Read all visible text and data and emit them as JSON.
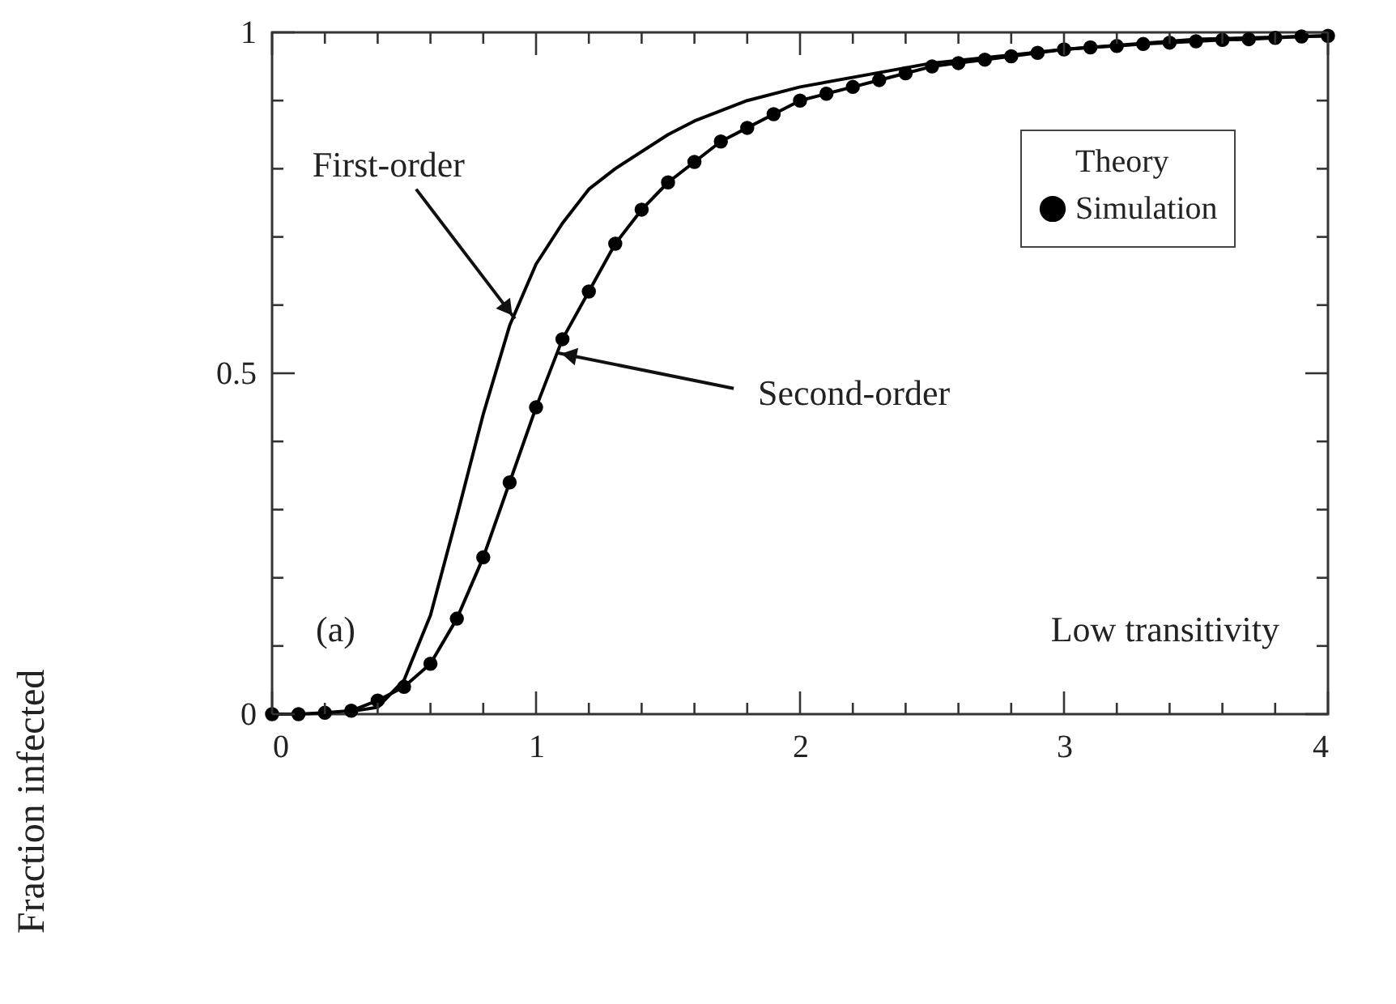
{
  "chart_data": {
    "type": "line",
    "ylabel": "Fraction infected",
    "x": [
      0,
      0.1,
      0.2,
      0.3,
      0.4,
      0.5,
      0.6,
      0.7,
      0.8,
      0.9,
      1.0,
      1.1,
      1.2,
      1.3,
      1.4,
      1.5,
      1.6,
      1.7,
      1.8,
      1.9,
      2.0,
      2.1,
      2.2,
      2.3,
      2.4,
      2.5,
      2.6,
      2.7,
      2.8,
      2.9,
      3.0,
      3.1,
      3.2,
      3.3,
      3.4,
      3.5,
      3.6,
      3.7,
      3.8,
      3.9,
      4.0
    ],
    "series": [
      {
        "name": "Theory",
        "type": "line",
        "color": "#000000",
        "x": [
          0.3,
          0.4,
          0.5,
          0.6,
          0.7,
          0.8,
          0.9,
          1.0,
          1.1,
          1.2,
          1.3,
          1.5,
          1.6,
          1.8,
          2.0,
          2.5,
          3.0,
          3.5,
          4.0
        ],
        "values": [
          0.004,
          0.01,
          0.05,
          0.145,
          0.29,
          0.44,
          0.57,
          0.66,
          0.72,
          0.77,
          0.8,
          0.85,
          0.87,
          0.9,
          0.92,
          0.955,
          0.975,
          0.99,
          0.995
        ]
      },
      {
        "type": "line",
        "color": "#000000",
        "values": [
          0,
          0,
          0.002,
          0.005,
          0.02,
          0.04,
          0.074,
          0.14,
          0.23,
          0.34,
          0.45,
          0.55,
          0.62,
          0.69,
          0.74,
          0.78,
          0.81,
          0.84,
          0.86,
          0.88,
          0.9,
          0.91,
          0.92,
          0.93,
          0.94,
          0.95,
          0.955,
          0.96,
          0.965,
          0.97,
          0.975,
          0.978,
          0.98,
          0.983,
          0.985,
          0.987,
          0.989,
          0.99,
          0.992,
          0.994,
          0.995
        ]
      },
      {
        "name": "Simulation",
        "type": "scatter",
        "marker": "circle",
        "color": "#000000",
        "values": [
          0,
          0,
          0.002,
          0.005,
          0.02,
          0.04,
          0.074,
          0.14,
          0.23,
          0.34,
          0.45,
          0.55,
          0.62,
          0.69,
          0.74,
          0.78,
          0.81,
          0.84,
          0.86,
          0.88,
          0.9,
          0.91,
          0.92,
          0.93,
          0.94,
          0.95,
          0.955,
          0.96,
          0.965,
          0.97,
          0.975,
          0.978,
          0.98,
          0.983,
          0.985,
          0.987,
          0.989,
          0.99,
          0.992,
          0.994,
          0.995
        ]
      }
    ],
    "xlim": [
      0,
      4
    ],
    "xticks": [
      0,
      {
        "value": 0.2,
        "label": null
      },
      {
        "value": 0.4,
        "label": null
      },
      {
        "value": 0.6,
        "label": null
      },
      {
        "value": 0.8,
        "label": null
      },
      1,
      {
        "value": 1.2,
        "label": null
      },
      {
        "value": 1.4,
        "label": null
      },
      {
        "value": 1.6,
        "label": null
      },
      {
        "value": 1.8,
        "label": null
      },
      2,
      {
        "value": 2.2,
        "label": null
      },
      {
        "value": 2.4,
        "label": null
      },
      {
        "value": 2.6,
        "label": null
      },
      {
        "value": 2.8,
        "label": null
      },
      3,
      {
        "value": 3.2,
        "label": null
      },
      {
        "value": 3.4,
        "label": null
      },
      {
        "value": 3.6,
        "label": null
      },
      {
        "value": 3.8,
        "label": null
      },
      4
    ],
    "ylim": [
      0,
      1
    ],
    "yticks": [
      0,
      {
        "value": 0.1,
        "label": null
      },
      {
        "value": 0.2,
        "label": null
      },
      {
        "value": 0.3,
        "label": null
      },
      {
        "value": 0.4,
        "label": null
      },
      0.5,
      {
        "value": 0.6,
        "label": null
      },
      {
        "value": 0.7,
        "label": null
      },
      {
        "value": 0.8,
        "label": null
      },
      {
        "value": 0.9,
        "label": null
      },
      1
    ],
    "annotations": [
      {
        "text": "First-order",
        "x": 0.92,
        "y": 0.58
      },
      {
        "text": "Second-order",
        "x": 1.08,
        "y": 0.53
      },
      "(a)",
      "Low transitivity"
    ],
    "grid": false,
    "legend": "top right",
    "line_style": "solid"
  }
}
